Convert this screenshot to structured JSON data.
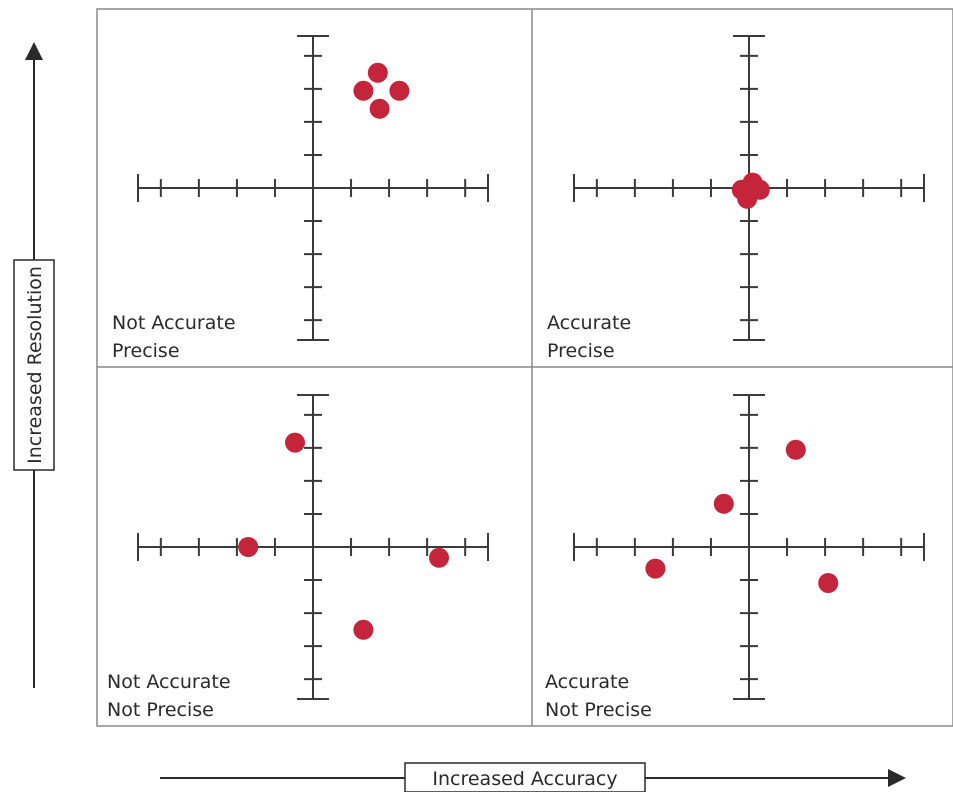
{
  "y_axis": {
    "title": "Increased Resolution"
  },
  "x_axis": {
    "title": "Increased Accuracy"
  },
  "colors": {
    "dot": "#c4253a",
    "line": "#3a3a3a",
    "frame": "#8a8a8a"
  },
  "quadrants": [
    {
      "id": "top-left",
      "line1": "Not Accurate",
      "line2": "Precise",
      "points": [
        [
          1.8,
          3.2
        ],
        [
          1.4,
          2.7
        ],
        [
          2.4,
          2.7
        ],
        [
          1.85,
          2.2
        ]
      ]
    },
    {
      "id": "top-right",
      "line1": "Accurate",
      "line2": "Precise",
      "points": [
        [
          0.1,
          0.15
        ],
        [
          -0.2,
          -0.05
        ],
        [
          0.3,
          -0.05
        ],
        [
          -0.05,
          -0.3
        ],
        [
          0.05,
          0.05
        ]
      ]
    },
    {
      "id": "bottom-left",
      "line1": "Not Accurate",
      "line2": "Not Precise",
      "points": [
        [
          -0.5,
          2.9
        ],
        [
          -1.8,
          0.0
        ],
        [
          3.5,
          -0.3
        ],
        [
          1.4,
          -2.3
        ]
      ]
    },
    {
      "id": "bottom-right",
      "line1": "Accurate",
      "line2": "Not Precise",
      "points": [
        [
          1.3,
          2.7
        ],
        [
          -0.7,
          1.2
        ],
        [
          -2.6,
          -0.6
        ],
        [
          2.2,
          -1.0
        ]
      ]
    }
  ]
}
